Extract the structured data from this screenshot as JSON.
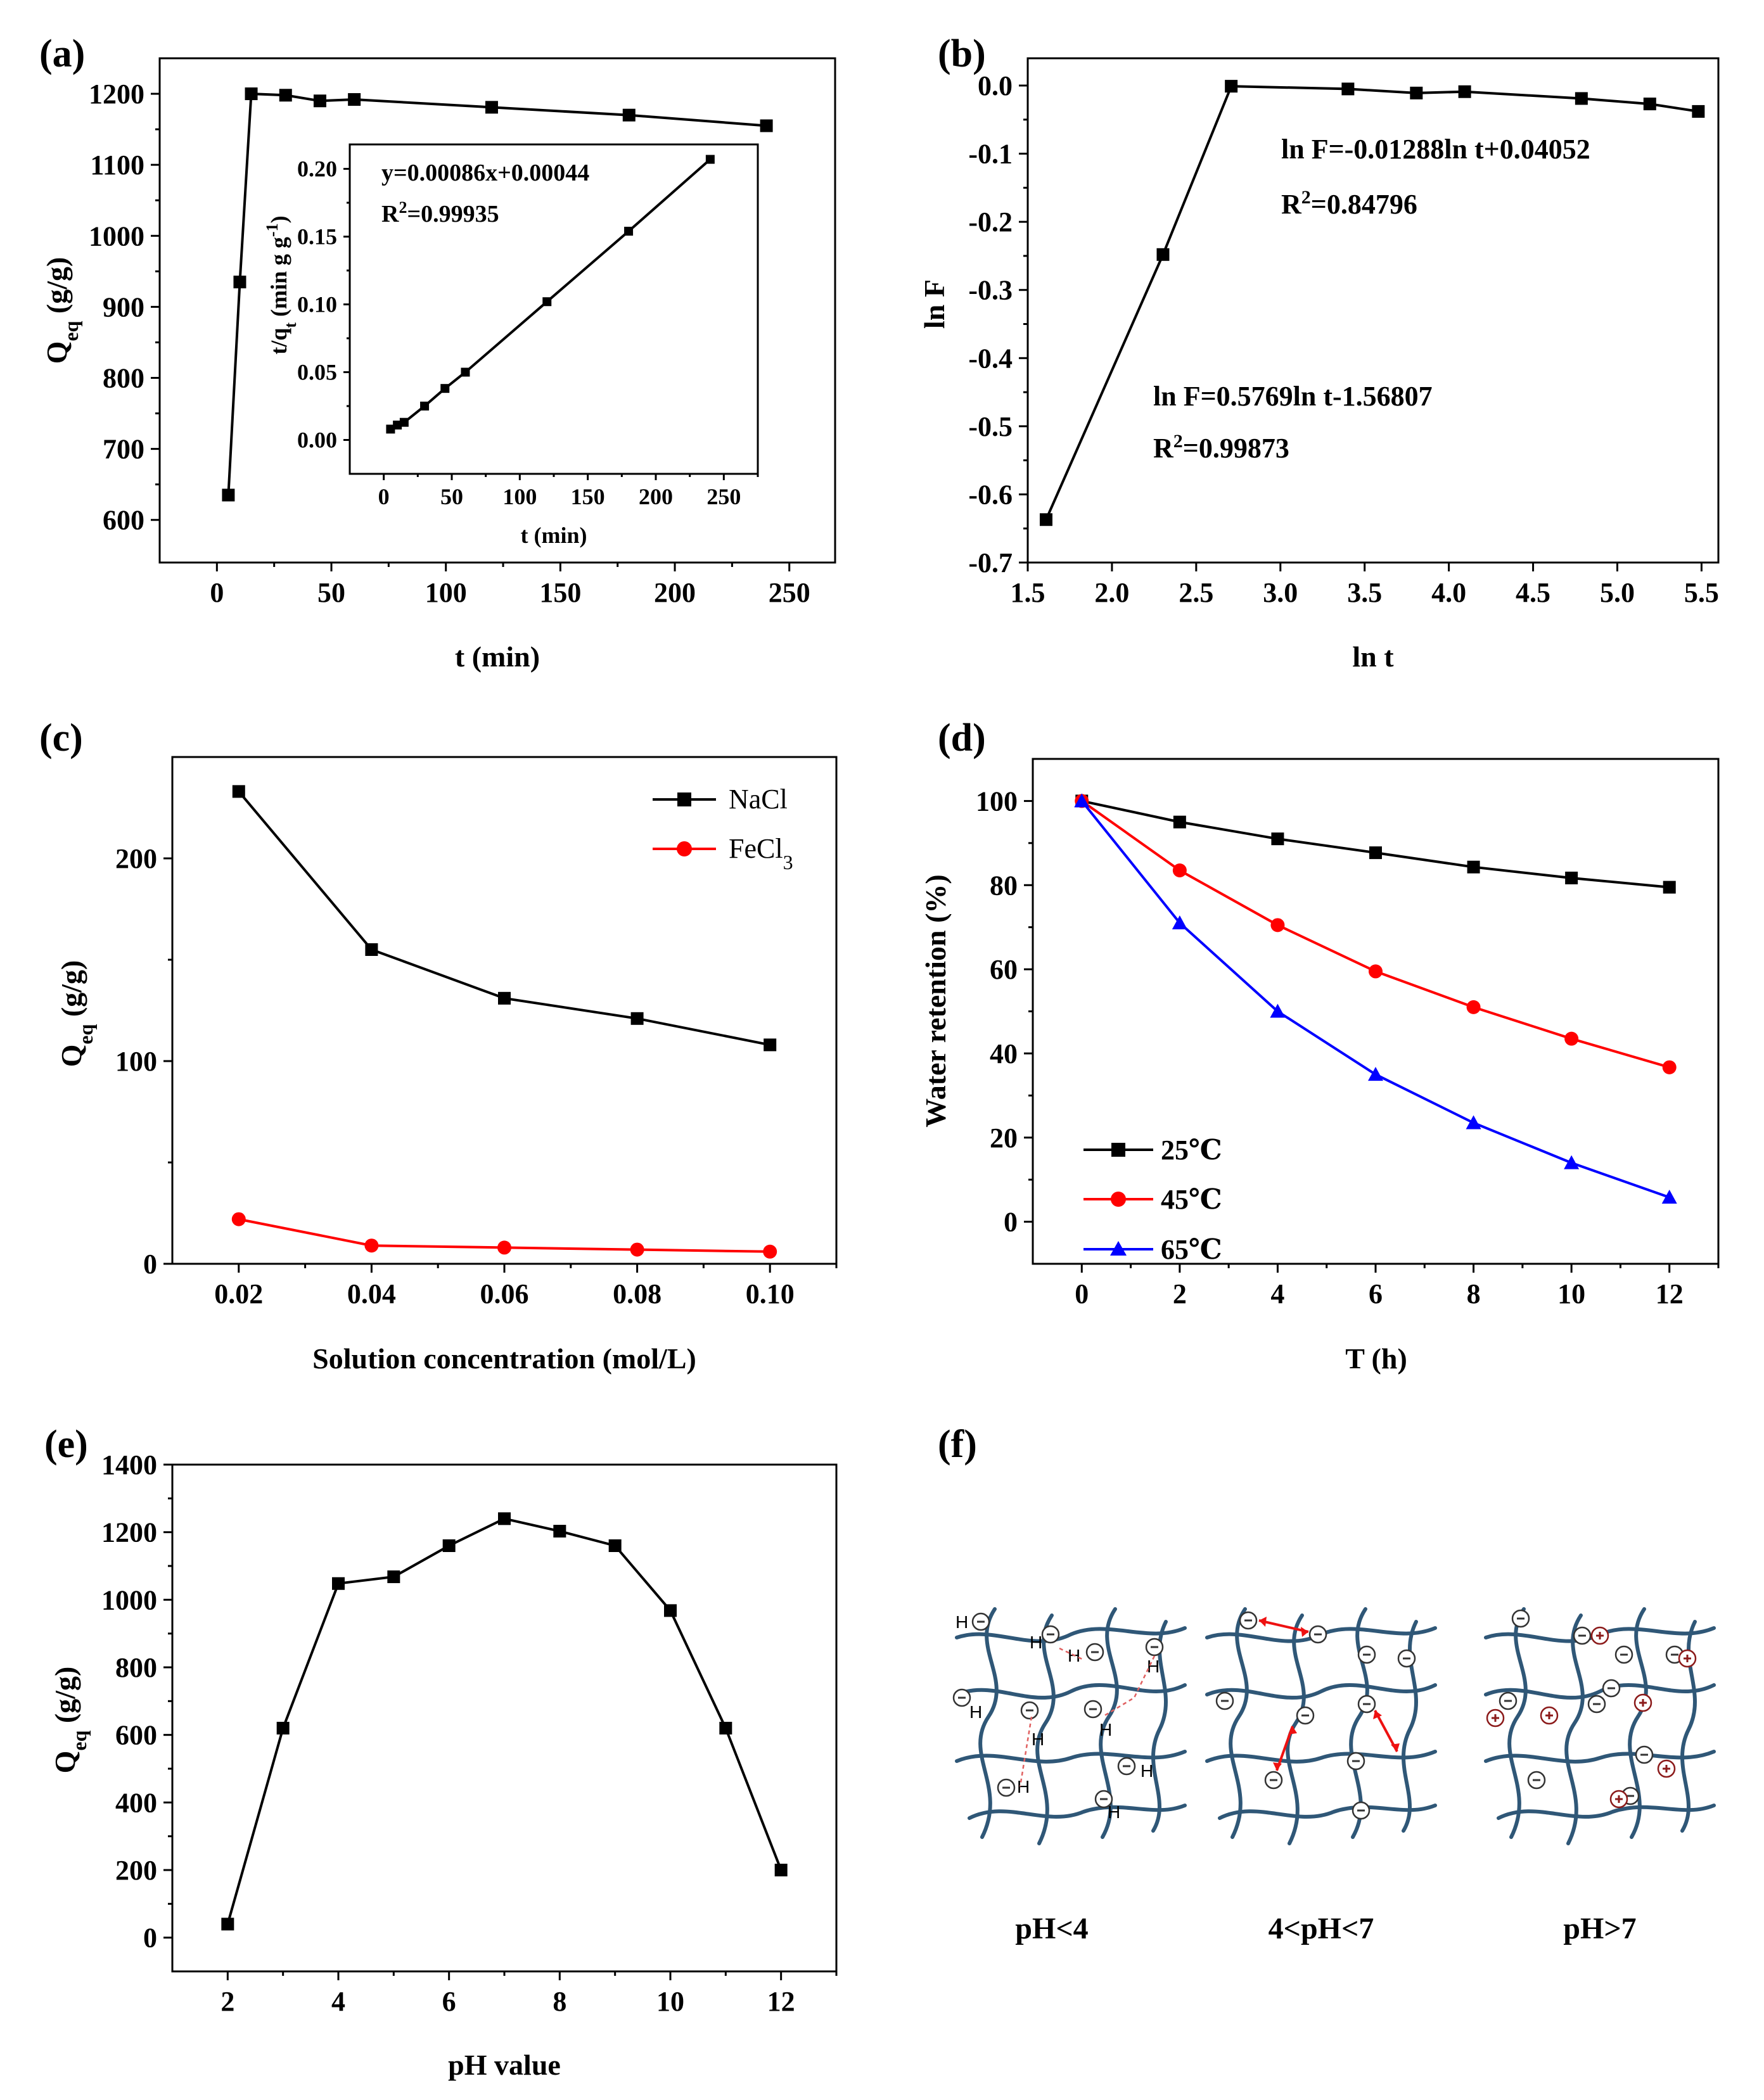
{
  "chart_data": [
    {
      "panel": "(a)",
      "type": "line",
      "xlabel": "t (min)",
      "ylabel": "Qeq (g/g)",
      "ylabel_main": "Q",
      "ylabel_sub": "eq",
      "ylabel_unit": " (g/g)",
      "xlim": [
        -25,
        270
      ],
      "ylim": [
        540,
        1250
      ],
      "xticks": [
        0,
        50,
        100,
        150,
        200,
        250
      ],
      "yticks": [
        600,
        700,
        800,
        900,
        1000,
        1100,
        1200
      ],
      "series": [
        {
          "name": "Qeq",
          "x": [
            5,
            10,
            15,
            30,
            45,
            60,
            120,
            180,
            240
          ],
          "y": [
            635,
            935,
            1200,
            1198,
            1190,
            1192,
            1181,
            1170,
            1155
          ]
        }
      ],
      "inset": {
        "type": "line",
        "xlabel": "t (min)",
        "ylabel": "t/qt (min g g-1)",
        "xlim": [
          -25,
          275
        ],
        "ylim": [
          -0.025,
          0.218
        ],
        "xticks": [
          0,
          50,
          100,
          150,
          200,
          250
        ],
        "yticks": [
          0.0,
          0.05,
          0.1,
          0.15,
          0.2
        ],
        "ytick_labels": [
          "0.00",
          "0.05",
          "0.10",
          "0.15",
          "0.20"
        ],
        "series": [
          {
            "name": "t/qt",
            "x": [
              5,
              10,
              15,
              30,
              45,
              60,
              120,
              180,
              240
            ],
            "y": [
              0.008,
              0.011,
              0.013,
              0.025,
              0.038,
              0.05,
              0.102,
              0.154,
              0.207
            ]
          }
        ],
        "equation": "y=0.00086x+0.00044",
        "r2_text": "R",
        "r2_sup": "2",
        "r2_value": "=0.99935"
      }
    },
    {
      "panel": "(b)",
      "type": "line",
      "xlabel": "ln t",
      "ylabel": "ln F",
      "xlim": [
        1.5,
        5.6
      ],
      "ylim": [
        -0.7,
        0.04
      ],
      "xticks": [
        1.5,
        2.0,
        2.5,
        3.0,
        3.5,
        4.0,
        4.5,
        5.0,
        5.5
      ],
      "xtick_labels": [
        "1.5",
        "2.0",
        "2.5",
        "3.0",
        "3.5",
        "4.0",
        "4.5",
        "5.0",
        "5.5"
      ],
      "yticks": [
        0.0,
        -0.1,
        -0.2,
        -0.3,
        -0.4,
        -0.5,
        -0.6,
        -0.7
      ],
      "ytick_labels": [
        "0.0",
        "-0.1",
        "-0.2",
        "-0.3",
        "-0.4",
        "-0.5",
        "-0.6",
        "-0.7"
      ],
      "series": [
        {
          "name": "ln F",
          "x": [
            1.609,
            2.303,
            2.708,
            3.401,
            3.807,
            4.094,
            4.787,
            5.193,
            5.481
          ],
          "y": [
            -0.637,
            -0.248,
            -0.001,
            -0.005,
            -0.011,
            -0.009,
            -0.019,
            -0.027,
            -0.038
          ]
        }
      ],
      "annotations": [
        {
          "eq": "ln F=-0.01288ln t+0.04052",
          "r2_value": "=0.84796"
        },
        {
          "eq": "ln F=0.5769ln t-1.56807",
          "r2_value": "=0.99873"
        }
      ],
      "r2_text": "R",
      "r2_sup": "2"
    },
    {
      "panel": "(c)",
      "type": "line",
      "xlabel": "Solution concentration (mol/L)",
      "ylabel": "Qeq (g/g)",
      "xlim": [
        0.01,
        0.11
      ],
      "ylim": [
        0,
        250
      ],
      "xticks": [
        0.02,
        0.04,
        0.06,
        0.08,
        0.1
      ],
      "xtick_labels": [
        "0.02",
        "0.04",
        "0.06",
        "0.08",
        "0.10"
      ],
      "yticks": [
        0,
        100,
        200
      ],
      "legend_position": "top-right",
      "series": [
        {
          "name": "NaCl",
          "color": "#000000",
          "marker": "square",
          "x": [
            0.02,
            0.04,
            0.06,
            0.08,
            0.1
          ],
          "y": [
            233,
            155,
            131,
            121,
            108
          ]
        },
        {
          "name": "FeCl3",
          "legend_main": "FeCl",
          "legend_sub": "3",
          "color": "#ff0000",
          "marker": "circle",
          "x": [
            0.02,
            0.04,
            0.06,
            0.08,
            0.1
          ],
          "y": [
            22,
            9,
            8,
            7,
            6
          ]
        }
      ]
    },
    {
      "panel": "(d)",
      "type": "line",
      "xlabel": "T (h)",
      "ylabel": "Water retention (%)",
      "xlim": [
        -1,
        13
      ],
      "ylim": [
        -10,
        110
      ],
      "xticks": [
        0,
        2,
        4,
        6,
        8,
        10,
        12
      ],
      "yticks": [
        0,
        20,
        40,
        60,
        80,
        100
      ],
      "legend_position": "bottom-left",
      "series": [
        {
          "name": "25℃",
          "color": "#000000",
          "marker": "square",
          "x": [
            0,
            2,
            4,
            6,
            8,
            10,
            12
          ],
          "y": [
            100,
            95,
            91,
            87.7,
            84.3,
            81.7,
            79.5
          ]
        },
        {
          "name": "45℃",
          "color": "#ff0000",
          "marker": "circle",
          "x": [
            0,
            2,
            4,
            6,
            8,
            10,
            12
          ],
          "y": [
            100,
            83.5,
            70.5,
            59.5,
            51,
            43.5,
            36.7
          ]
        },
        {
          "name": "65℃",
          "color": "#0000ff",
          "marker": "triangle",
          "x": [
            0,
            2,
            4,
            6,
            8,
            10,
            12
          ],
          "y": [
            100,
            71,
            50,
            35,
            23.5,
            14,
            5.8
          ]
        }
      ]
    },
    {
      "panel": "(e)",
      "type": "line",
      "xlabel": "pH value",
      "ylabel": "Qeq (g/g)",
      "xlim": [
        1,
        13
      ],
      "ylim": [
        -100,
        1400
      ],
      "xticks": [
        2,
        4,
        6,
        8,
        10,
        12
      ],
      "yticks": [
        0,
        200,
        400,
        600,
        800,
        1000,
        1200,
        1400
      ],
      "series": [
        {
          "name": "Qeq",
          "x": [
            2,
            3,
            4,
            5,
            6,
            7,
            8,
            9,
            10,
            11,
            12
          ],
          "y": [
            40,
            620,
            1048,
            1068,
            1160,
            1240,
            1203,
            1160,
            968,
            620,
            200
          ]
        }
      ]
    }
  ],
  "schematic": {
    "panel": "(f)",
    "labels": [
      "pH<4",
      "4<pH<7",
      "pH>7"
    ],
    "hydrogen": "H",
    "minus": "−",
    "plus": "+",
    "network_color": "#2f5777",
    "bond_color": "#e06060",
    "repel_color": "#ee1111",
    "cation_color": "#8b1a1a"
  }
}
